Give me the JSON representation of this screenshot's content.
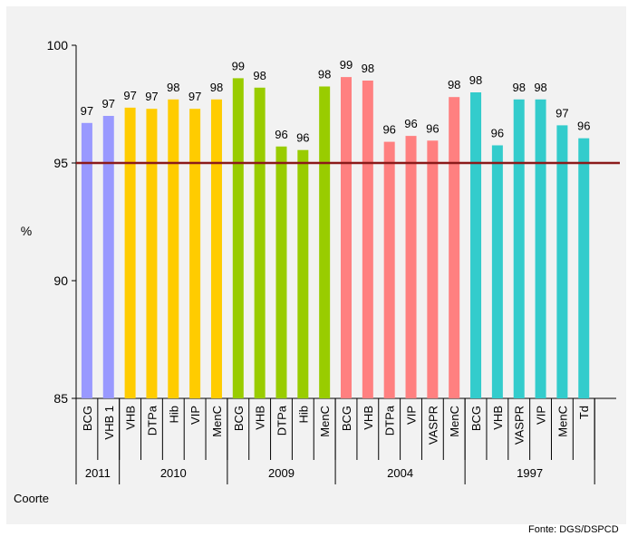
{
  "chart_data": {
    "type": "bar",
    "ylabel": "%",
    "xlabel": "Coorte",
    "ylim": [
      85,
      100
    ],
    "yticks": [
      85,
      90,
      95,
      100
    ],
    "reference_line": {
      "value": 95,
      "color": "#8b1a1a"
    },
    "grid": false,
    "groups": [
      {
        "label": "2011",
        "color": "#9999ff",
        "bars": [
          {
            "category": "BCG",
            "value": 96.7,
            "label": "97"
          },
          {
            "category": "VHB 1",
            "value": 97.0,
            "label": "97"
          }
        ]
      },
      {
        "label": "2010",
        "color": "#ffcc00",
        "bars": [
          {
            "category": "VHB",
            "value": 97.35,
            "label": "97"
          },
          {
            "category": "DTPa",
            "value": 97.3,
            "label": "97"
          },
          {
            "category": "Hib",
            "value": 97.7,
            "label": "98"
          },
          {
            "category": "VIP",
            "value": 97.3,
            "label": "97"
          },
          {
            "category": "MenC",
            "value": 97.7,
            "label": "98"
          }
        ]
      },
      {
        "label": "2009",
        "color": "#99cc00",
        "bars": [
          {
            "category": "BCG",
            "value": 98.6,
            "label": "99"
          },
          {
            "category": "VHB",
            "value": 98.2,
            "label": "98"
          },
          {
            "category": "DTPa",
            "value": 95.7,
            "label": "96"
          },
          {
            "category": "Hib",
            "value": 95.55,
            "label": "96"
          },
          {
            "category": "MenC",
            "value": 98.25,
            "label": "98"
          }
        ]
      },
      {
        "label": "2004",
        "color": "#ff8080",
        "bars": [
          {
            "category": "BCG",
            "value": 98.65,
            "label": "99"
          },
          {
            "category": "VHB",
            "value": 98.5,
            "label": "98"
          },
          {
            "category": "DTPa",
            "value": 95.9,
            "label": "96"
          },
          {
            "category": "VIP",
            "value": 96.15,
            "label": "96"
          },
          {
            "category": "VASPR",
            "value": 95.95,
            "label": "96"
          },
          {
            "category": "MenC",
            "value": 97.8,
            "label": "98"
          }
        ]
      },
      {
        "label": "1997",
        "color": "#33cccc",
        "bars": [
          {
            "category": "BCG",
            "value": 98.0,
            "label": "98"
          },
          {
            "category": "VHB",
            "value": 95.75,
            "label": "96"
          },
          {
            "category": "VASPR",
            "value": 97.7,
            "label": "98"
          },
          {
            "category": "VIP",
            "value": 97.7,
            "label": "98"
          },
          {
            "category": "MenC",
            "value": 96.6,
            "label": "97"
          },
          {
            "category": "Td",
            "value": 96.05,
            "label": "96"
          }
        ]
      }
    ]
  },
  "source_note": "Fonte: DGS/DSPCD"
}
